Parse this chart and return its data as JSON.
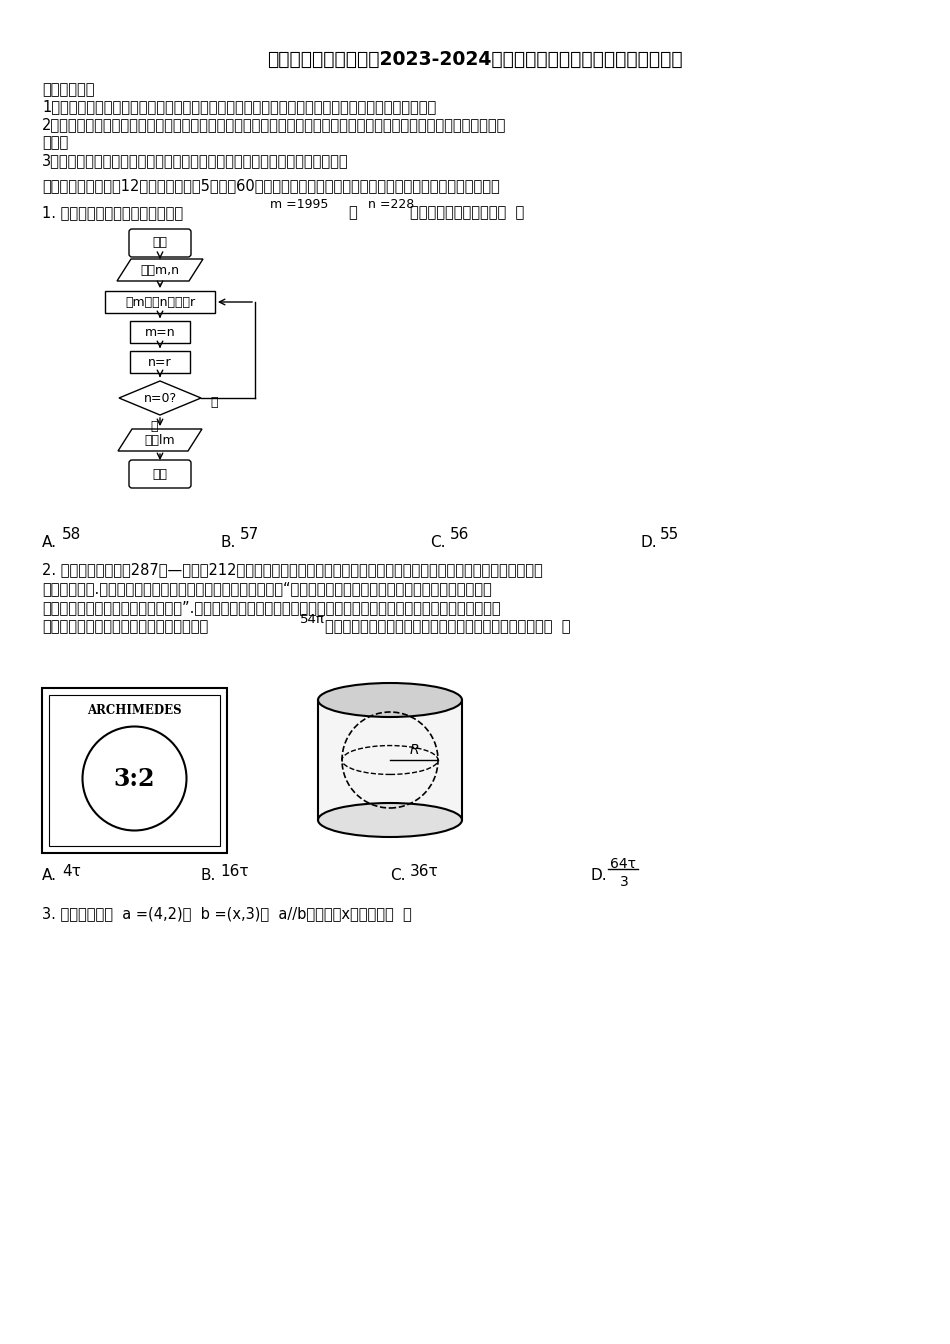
{
  "title": "河北省邯郸市第一中学2023-2024学年高三上数学期末复习检测模拟试题",
  "notice_header": "考生请注意：",
  "notice1": "1．答题前请将考场、试室号、座位号、考生号、姓名写在试卷密封线内，不得在试卷上作任何标记。",
  "notice2": "2．第一部分选择题每小题选出答案后，需将答案写在试卷指定的括号内，第二部分非选择题答案写在试卷题目指定的位",
  "notice2b": "置上。",
  "notice3": "3．考生必须保证答题卡的整洁。考试结束后，请将本试卷和答题卡一并交回。",
  "section_header": "一、选择题：本题兲12小题，每小题々5分，內60分。在每小题给出的四个选项中，只有一项是符合题目要求的。",
  "q1_prefix": "1. 执行下面的程序框图，如果输入",
  "q1_m": "m =1995",
  "q1_n": "n =228",
  "q1_suffix": "，则计算机输出的数是（  ）",
  "fc_start": "开始",
  "fc_input": "输入m,n",
  "fc_calc": "求m除以n的余数r",
  "fc_mn": "m=n",
  "fc_nr": "n=r",
  "fc_check": "n=0?",
  "fc_yes": "是",
  "fc_no": "否",
  "fc_output": "输出lm",
  "fc_end": "结束",
  "q1_A": "A.",
  "q1_Av": "58",
  "q1_B": "B.",
  "q1_Bv": "57",
  "q1_C": "C.",
  "q1_Cv": "56",
  "q1_D": "D.",
  "q1_Dv": "55",
  "q2_line1": "2. 阿基米德（公元前287年—公元前212年）是古希腊伟大的哲学家、数学家和物理学家，他和高斯、牛顿并列被称为世",
  "q2_line2": "界三大数学家.据说，他自己觉得最为满意的一个数学发现就是“圆柱内切球体的体积是圆柱体积的三分之二，并且球",
  "q2_line3": "的表面积也是圆柱表面积的三分之二”.他特别喜欢这个结论，要求后人在他的基碑上刻着一个圆柱容器里放了一个球，",
  "q2_line4a": "如图，该球顶天立地，四周碰边，表面积为",
  "q2_surface": "54π",
  "q2_line4b": "的圆柱的底面直径与高都等于球的直径，则该球的体积为（  ）",
  "arch_label": "ARCHIMEDES",
  "arch_ratio": "3:2",
  "q2_A": "A.",
  "q2_Av": "4τ",
  "q2_B": "B.",
  "q2_Bv": "16τ",
  "q2_C": "C.",
  "q2_Cv": "36τ",
  "q2_D": "D.",
  "q2_Dv_num": "64τ",
  "q2_Dv_den": "3",
  "q3_line": "3. 已知平面向量  a =(4,2)，  b =(x,3)，  a//b，则实数x的値等于（  ）"
}
